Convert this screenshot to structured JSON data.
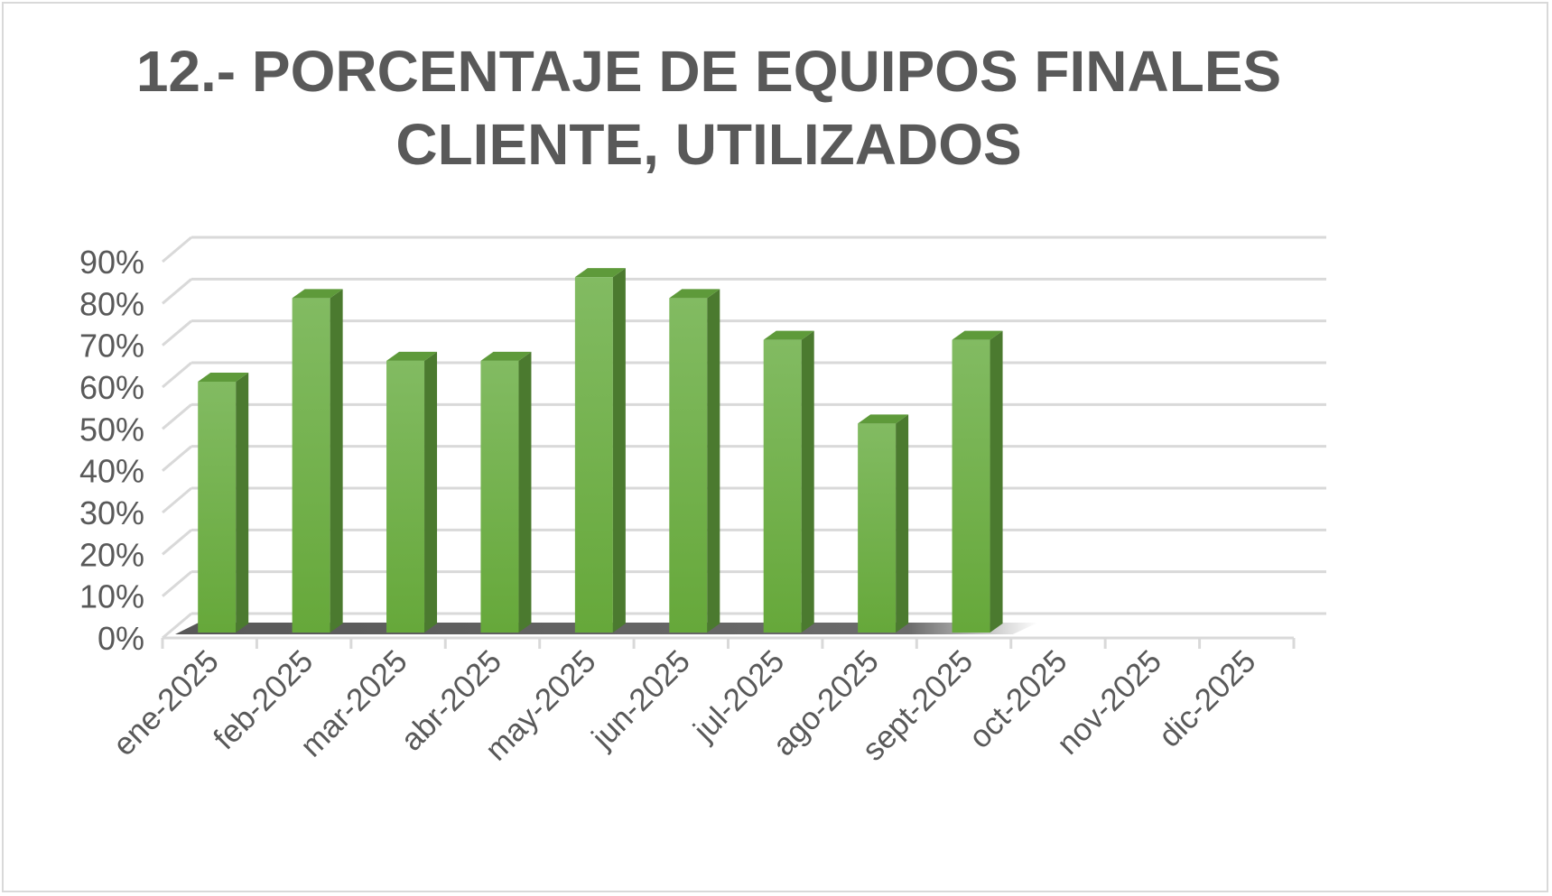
{
  "chart_data": {
    "type": "bar",
    "title": [
      "12.- PORCENTAJE DE EQUIPOS FINALES",
      "CLIENTE, UTILIZADOS"
    ],
    "categories": [
      "ene-2025",
      "feb-2025",
      "mar-2025",
      "abr-2025",
      "may-2025",
      "jun-2025",
      "jul-2025",
      "ago-2025",
      "sept-2025",
      "oct-2025",
      "nov-2025",
      "dic-2025"
    ],
    "values": [
      60,
      80,
      65,
      65,
      85,
      80,
      70,
      50,
      70,
      null,
      null,
      null
    ],
    "ylim": [
      0,
      90
    ],
    "yticks": [
      "0%",
      "10%",
      "20%",
      "30%",
      "40%",
      "50%",
      "60%",
      "70%",
      "80%",
      "90%"
    ],
    "xlabel": "",
    "ylabel": "",
    "grid": true,
    "legend": "none",
    "style": "3d-column",
    "colors": {
      "bar_front": "#70ad47",
      "bar_side": "#4b7a2f",
      "bar_top": "#5e9a3a",
      "gridline": "#d9d9d9",
      "text": "#595959"
    }
  }
}
